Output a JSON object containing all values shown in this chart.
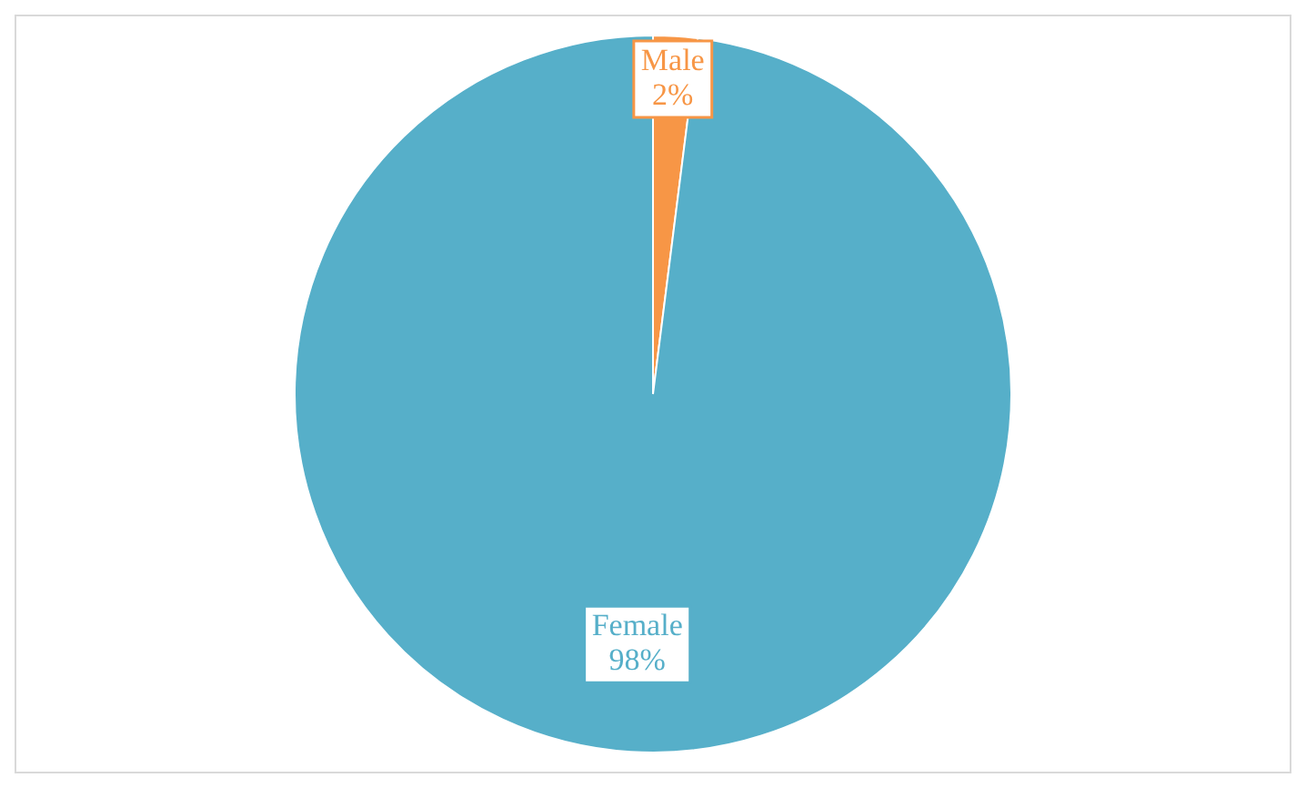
{
  "chart_data": {
    "type": "pie",
    "categories": [
      "Male",
      "Female"
    ],
    "values": [
      2,
      98
    ],
    "colors": [
      "#f79646",
      "#56afc9"
    ],
    "value_labels": [
      "2%",
      "98%"
    ],
    "legend": false
  }
}
